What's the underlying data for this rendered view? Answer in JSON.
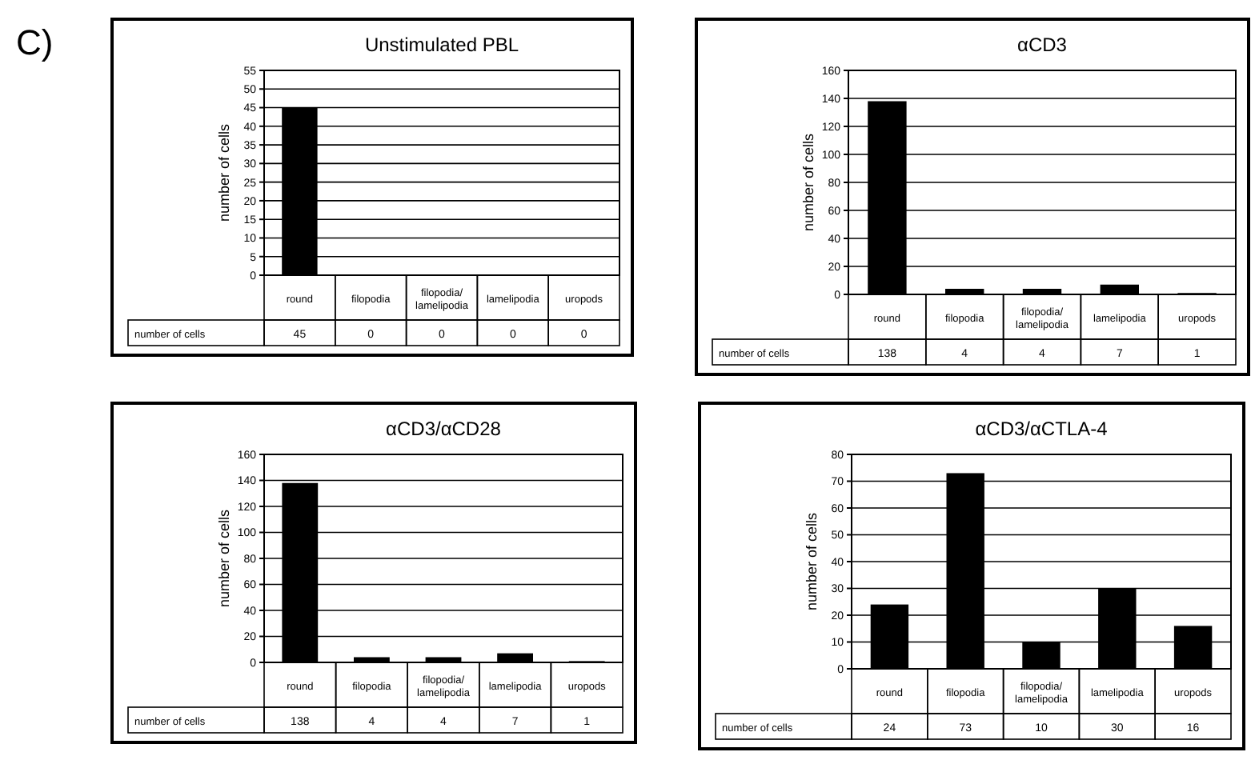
{
  "chart_data": [
    {
      "type": "bar",
      "title": "Unstimulated PBL",
      "ylabel": "number of cells",
      "annotations": [
        "C)"
      ],
      "categories": [
        "round",
        "filopodia",
        "filopodia/ lamelipodia",
        "lamelipodia",
        "uropods"
      ],
      "series": [
        {
          "name": "number of cells",
          "color": "#000000",
          "values": [
            45,
            0,
            0,
            0,
            0
          ]
        }
      ],
      "ylim": [
        0,
        55
      ],
      "yticks": [
        0,
        5,
        10,
        15,
        20,
        25,
        30,
        35,
        40,
        45,
        50,
        55
      ],
      "grid": "y",
      "data_labels": true,
      "legend": false
    },
    {
      "type": "bar",
      "title": "αCD3",
      "ylabel": "number of cells",
      "categories": [
        "round",
        "filopodia",
        "filopodia/ lamelipodia",
        "lamelipodia",
        "uropods"
      ],
      "series": [
        {
          "name": "number of cells",
          "color": "#000000",
          "values": [
            138,
            4,
            4,
            7,
            1
          ]
        }
      ],
      "ylim": [
        0,
        160
      ],
      "yticks": [
        0,
        20,
        40,
        60,
        80,
        100,
        120,
        140,
        160
      ],
      "grid": "y",
      "data_labels": true,
      "legend": false
    },
    {
      "type": "bar",
      "title": "αCD3/αCD28",
      "ylabel": "number of cells",
      "categories": [
        "round",
        "filopodia",
        "filopodia/ lamelipodia",
        "lamelipodia",
        "uropods"
      ],
      "series": [
        {
          "name": "number of cells",
          "color": "#000000",
          "values": [
            138,
            4,
            4,
            7,
            1
          ]
        }
      ],
      "ylim": [
        0,
        160
      ],
      "yticks": [
        0,
        20,
        40,
        60,
        80,
        100,
        120,
        140,
        160
      ],
      "grid": "y",
      "data_labels": true,
      "legend": false
    },
    {
      "type": "bar",
      "title": "αCD3/αCTLA-4",
      "ylabel": "number of cells",
      "categories": [
        "round",
        "filopodia",
        "filopodia/ lamelipodia",
        "lamelipodia",
        "uropods"
      ],
      "series": [
        {
          "name": "number of cells",
          "color": "#000000",
          "values": [
            24,
            73,
            10,
            30,
            16
          ]
        }
      ],
      "ylim": [
        0,
        80
      ],
      "yticks": [
        0,
        10,
        20,
        30,
        40,
        50,
        60,
        70,
        80
      ],
      "grid": "y",
      "data_labels": true,
      "legend": false
    }
  ]
}
